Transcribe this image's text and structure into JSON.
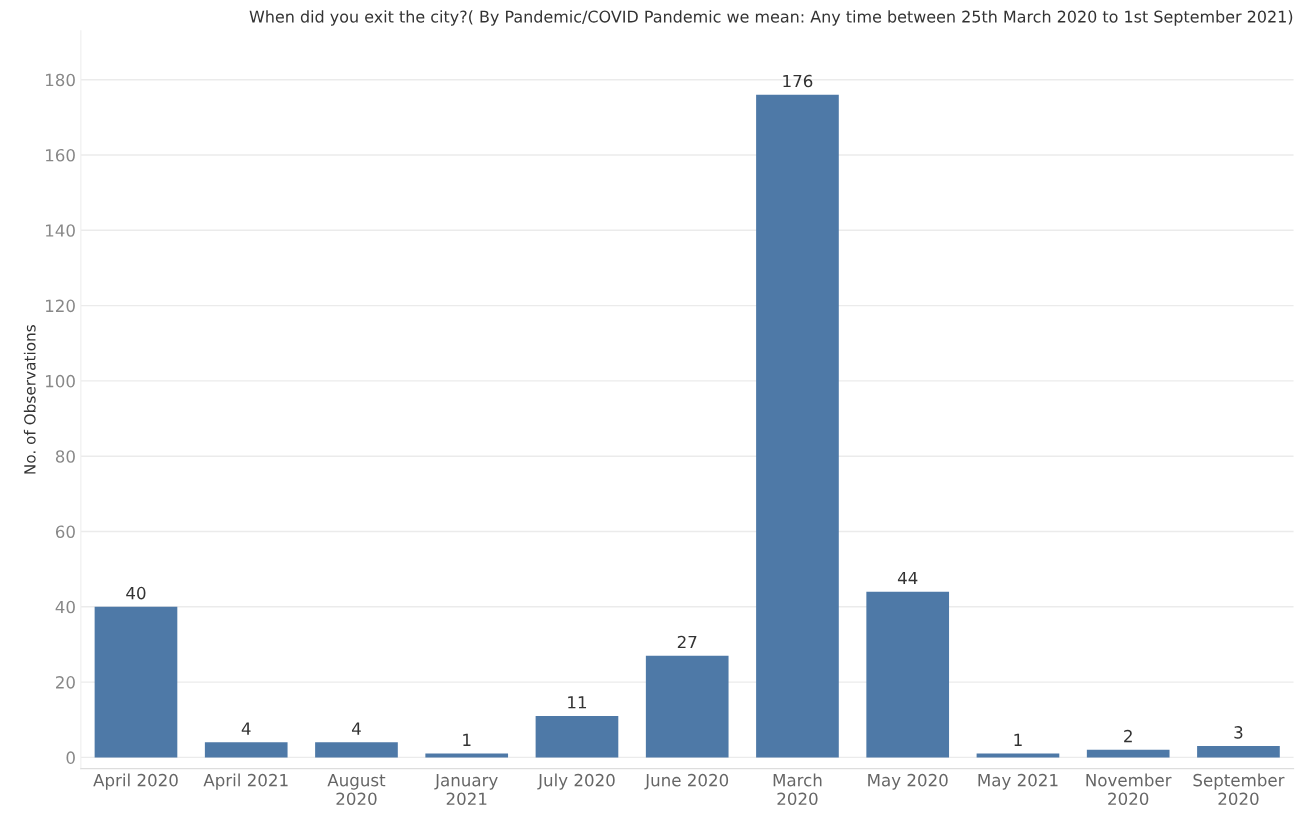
{
  "chart_data": {
    "type": "bar",
    "title": "When did you exit the city?( By Pandemic/COVID Pandemic we mean: Any time between 25th March 2020 to 1st September 2021)",
    "ylabel": "No. of Observations",
    "categories": [
      "April 2020",
      "April 2021",
      "August\n2020",
      "January\n2021",
      "July 2020",
      "June 2020",
      "March\n2020",
      "May 2020",
      "May 2021",
      "November\n2020",
      "September\n2020"
    ],
    "values": [
      40,
      4,
      4,
      1,
      11,
      27,
      176,
      44,
      1,
      2,
      3
    ],
    "color": "#4e79a7",
    "data_labels": true,
    "ylim": [
      -3,
      193
    ],
    "yticks": [
      0,
      20,
      40,
      60,
      80,
      100,
      120,
      140,
      160,
      180
    ],
    "grid": "y",
    "legend": false
  }
}
